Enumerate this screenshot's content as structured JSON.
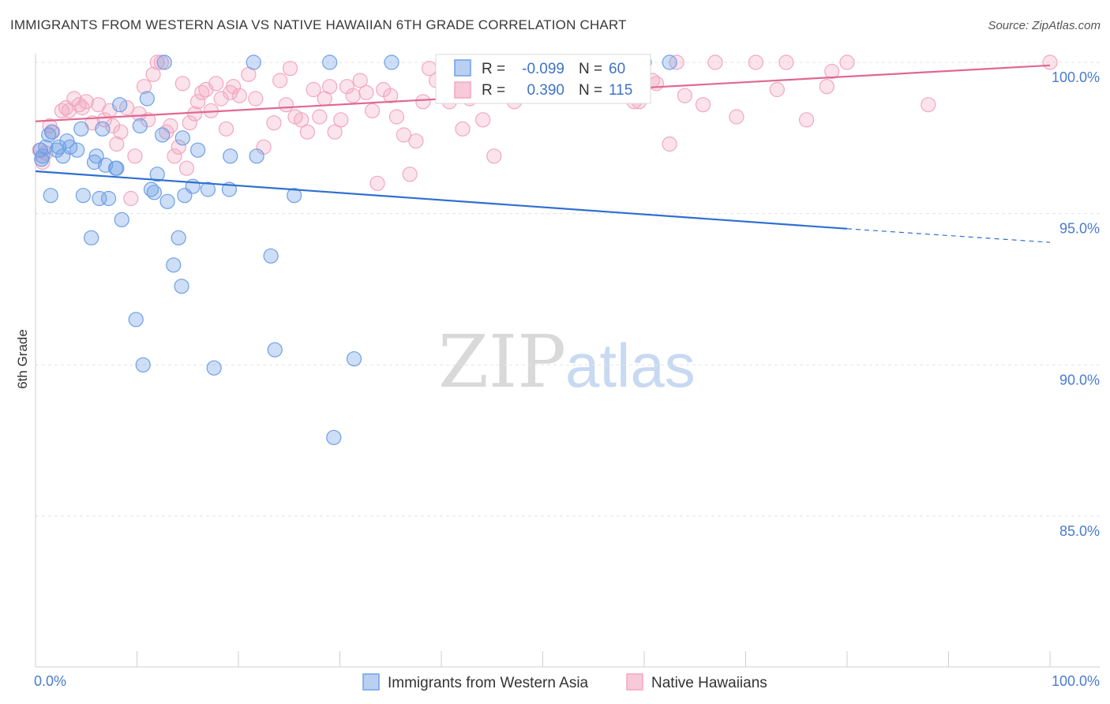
{
  "title": "IMMIGRANTS FROM WESTERN ASIA VS NATIVE HAWAIIAN 6TH GRADE CORRELATION CHART",
  "source": "Source: ZipAtlas.com",
  "watermark": {
    "zip": "ZIP",
    "atlas": "atlas"
  },
  "chart_data": {
    "type": "scatter",
    "ylabel": "6th Grade",
    "xlabel": "",
    "xlim": [
      0,
      100
    ],
    "ylim": [
      80.5,
      100.6
    ],
    "x_tick_labels": {
      "left": "0.0%",
      "right": "100.0%"
    },
    "y_ticks": [
      {
        "value": 100,
        "label": "100.0%"
      },
      {
        "value": 95,
        "label": "95.0%"
      },
      {
        "value": 90,
        "label": "90.0%"
      },
      {
        "value": 85,
        "label": "85.0%"
      }
    ],
    "grid": "horizontal dashed",
    "legend_position": "top-center",
    "series": [
      {
        "name": "Immigrants from Western Asia",
        "color": "#6fa0e6",
        "line_color": "#2f6fd0",
        "R": "-0.099",
        "N": "60",
        "trend": {
          "x0": 0,
          "y0": 96.4,
          "x1": 80,
          "y1": 94.5,
          "dash_to": 100,
          "dash_y": 94.05
        },
        "points": [
          [
            0.5,
            97.1
          ],
          [
            0.6,
            96.8
          ],
          [
            0.7,
            96.9
          ],
          [
            1.0,
            97.2
          ],
          [
            1.3,
            97.6
          ],
          [
            1.5,
            95.6
          ],
          [
            1.6,
            97.7
          ],
          [
            2.1,
            97.1
          ],
          [
            2.3,
            97.2
          ],
          [
            2.7,
            96.9
          ],
          [
            3.1,
            97.4
          ],
          [
            3.4,
            97.2
          ],
          [
            4.1,
            97.1
          ],
          [
            4.7,
            95.6
          ],
          [
            5.5,
            94.2
          ],
          [
            6.3,
            95.5
          ],
          [
            6.6,
            97.8
          ],
          [
            6.9,
            96.6
          ],
          [
            7.2,
            95.5
          ],
          [
            8.0,
            96.5
          ],
          [
            8.5,
            94.8
          ],
          [
            9.9,
            91.5
          ],
          [
            10.3,
            97.9
          ],
          [
            10.6,
            90.0
          ],
          [
            11.0,
            98.8
          ],
          [
            11.4,
            95.8
          ],
          [
            11.7,
            95.7
          ],
          [
            12.0,
            96.3
          ],
          [
            12.5,
            97.6
          ],
          [
            13.0,
            95.4
          ],
          [
            13.6,
            93.3
          ],
          [
            14.1,
            94.2
          ],
          [
            14.4,
            92.6
          ],
          [
            14.7,
            95.6
          ],
          [
            15.5,
            95.9
          ],
          [
            16.0,
            97.1
          ],
          [
            17.0,
            95.8
          ],
          [
            17.6,
            89.9
          ],
          [
            19.1,
            95.8
          ],
          [
            19.2,
            96.9
          ],
          [
            21.5,
            100.0
          ],
          [
            21.8,
            96.9
          ],
          [
            23.2,
            93.6
          ],
          [
            23.6,
            90.5
          ],
          [
            25.5,
            95.6
          ],
          [
            29.0,
            100.0
          ],
          [
            29.4,
            87.6
          ],
          [
            31.4,
            90.2
          ],
          [
            35.1,
            100.0
          ],
          [
            45.5,
            100.0
          ],
          [
            53.0,
            100.0
          ],
          [
            60.0,
            100.0
          ],
          [
            62.5,
            100.0
          ],
          [
            4.5,
            97.8
          ],
          [
            5.8,
            96.7
          ],
          [
            7.9,
            96.5
          ],
          [
            8.3,
            98.6
          ],
          [
            12.7,
            100.0
          ],
          [
            14.5,
            97.5
          ],
          [
            6.0,
            96.9
          ]
        ]
      },
      {
        "name": "Native Hawaiians",
        "color": "#f2a7c0",
        "line_color": "#e06892",
        "R": "0.390",
        "N": "115",
        "trend": {
          "x0": 0,
          "y0": 98.05,
          "x1": 100,
          "y1": 99.9
        },
        "points": [
          [
            0.4,
            97.1
          ],
          [
            0.7,
            96.7
          ],
          [
            1.0,
            97.0
          ],
          [
            1.4,
            97.9
          ],
          [
            1.7,
            97.7
          ],
          [
            2.6,
            98.4
          ],
          [
            3.0,
            98.5
          ],
          [
            3.3,
            98.4
          ],
          [
            3.8,
            98.8
          ],
          [
            4.3,
            98.6
          ],
          [
            4.6,
            98.5
          ],
          [
            5.0,
            98.7
          ],
          [
            5.6,
            98.0
          ],
          [
            6.2,
            98.6
          ],
          [
            6.8,
            98.1
          ],
          [
            7.3,
            98.4
          ],
          [
            7.6,
            97.9
          ],
          [
            8.0,
            97.3
          ],
          [
            8.4,
            97.7
          ],
          [
            9.0,
            98.5
          ],
          [
            9.4,
            95.5
          ],
          [
            9.8,
            96.9
          ],
          [
            10.2,
            98.3
          ],
          [
            10.7,
            99.2
          ],
          [
            11.1,
            98.1
          ],
          [
            11.6,
            99.6
          ],
          [
            12.0,
            100.0
          ],
          [
            12.4,
            100.0
          ],
          [
            12.9,
            97.7
          ],
          [
            13.3,
            97.9
          ],
          [
            13.7,
            96.9
          ],
          [
            14.1,
            97.2
          ],
          [
            14.5,
            99.3
          ],
          [
            14.9,
            96.5
          ],
          [
            15.2,
            98.0
          ],
          [
            15.7,
            98.3
          ],
          [
            16.0,
            98.7
          ],
          [
            16.4,
            99.0
          ],
          [
            16.8,
            99.1
          ],
          [
            17.3,
            98.4
          ],
          [
            17.8,
            99.3
          ],
          [
            18.3,
            98.8
          ],
          [
            18.8,
            97.8
          ],
          [
            19.2,
            99.0
          ],
          [
            19.5,
            99.2
          ],
          [
            20.1,
            98.9
          ],
          [
            21.0,
            99.6
          ],
          [
            21.7,
            98.8
          ],
          [
            22.5,
            97.2
          ],
          [
            23.5,
            98.0
          ],
          [
            24.1,
            99.4
          ],
          [
            24.7,
            98.6
          ],
          [
            25.1,
            99.8
          ],
          [
            25.6,
            98.2
          ],
          [
            26.2,
            98.1
          ],
          [
            26.8,
            97.7
          ],
          [
            27.4,
            99.1
          ],
          [
            28.0,
            98.2
          ],
          [
            28.5,
            98.8
          ],
          [
            29.0,
            99.2
          ],
          [
            29.5,
            97.7
          ],
          [
            30.1,
            98.1
          ],
          [
            30.7,
            99.2
          ],
          [
            31.3,
            98.9
          ],
          [
            32.0,
            99.4
          ],
          [
            32.6,
            99.0
          ],
          [
            33.2,
            98.4
          ],
          [
            33.7,
            96.0
          ],
          [
            34.3,
            99.1
          ],
          [
            35.0,
            98.9
          ],
          [
            35.6,
            98.2
          ],
          [
            36.3,
            97.6
          ],
          [
            36.9,
            96.3
          ],
          [
            37.5,
            97.4
          ],
          [
            38.2,
            98.7
          ],
          [
            38.8,
            99.8
          ],
          [
            39.5,
            99.4
          ],
          [
            40.2,
            100.0
          ],
          [
            40.8,
            98.7
          ],
          [
            41.5,
            100.0
          ],
          [
            42.1,
            97.8
          ],
          [
            42.8,
            98.8
          ],
          [
            43.4,
            100.0
          ],
          [
            44.1,
            98.1
          ],
          [
            45.2,
            96.9
          ],
          [
            46.3,
            99.7
          ],
          [
            47.2,
            98.7
          ],
          [
            49.0,
            100.0
          ],
          [
            51.0,
            99.6
          ],
          [
            52.5,
            100.0
          ],
          [
            54.2,
            100.0
          ],
          [
            56.4,
            99.3
          ],
          [
            58.0,
            100.0
          ],
          [
            59.5,
            98.7
          ],
          [
            61.2,
            99.3
          ],
          [
            62.5,
            97.3
          ],
          [
            64.0,
            98.9
          ],
          [
            65.8,
            98.6
          ],
          [
            67.0,
            100.0
          ],
          [
            69.1,
            98.2
          ],
          [
            71.0,
            100.0
          ],
          [
            73.1,
            99.1
          ],
          [
            74.0,
            100.0
          ],
          [
            76.0,
            98.1
          ],
          [
            78.0,
            99.2
          ],
          [
            78.5,
            99.7
          ],
          [
            80.0,
            100.0
          ],
          [
            88.0,
            98.6
          ],
          [
            100.0,
            100.0
          ],
          [
            59.0,
            98.7
          ],
          [
            60.8,
            99.4
          ],
          [
            63.2,
            100.0
          ],
          [
            57.2,
            100.0
          ],
          [
            55.5,
            100.0
          ],
          [
            44.8,
            100.0
          ]
        ]
      }
    ]
  }
}
